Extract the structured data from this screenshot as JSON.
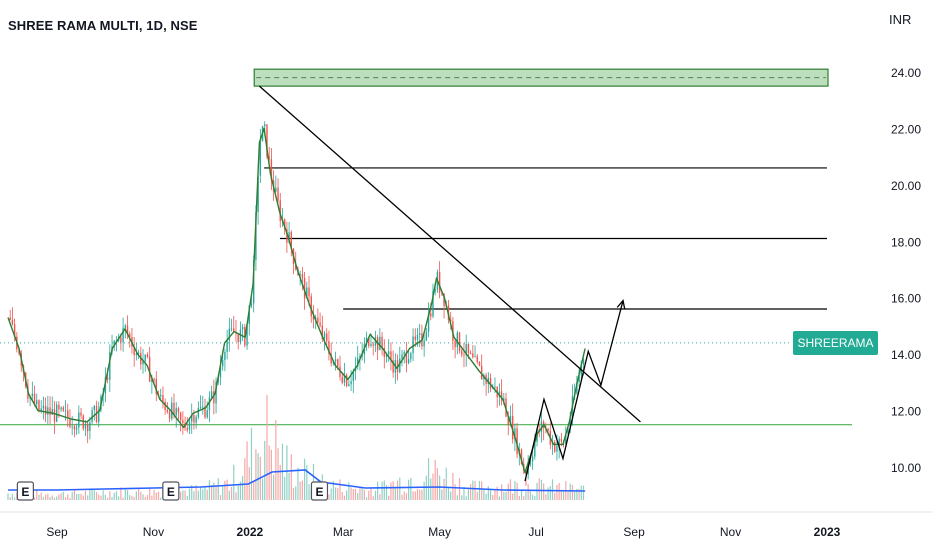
{
  "header": {
    "title": "SHREE RAMA MULTI, 1D, NSE",
    "currency": "INR"
  },
  "price_badge": {
    "label": "SHREERAMA",
    "color": "#22ab94"
  },
  "earnings_label": "E",
  "colors": {
    "up": "#26a69a",
    "down": "#ef5350",
    "ma": "#2962ff",
    "zone_fill": "#a5d6a7",
    "zone_border": "#2e7d32",
    "support": "#4caf50",
    "drawing": "#000000"
  },
  "chart_data": {
    "type": "candlestick",
    "title": "SHREE RAMA MULTI, 1D, NSE",
    "ylabel": "INR",
    "ylim": [
      9.0,
      24.8
    ],
    "y_ticks": [
      "24.00",
      "22.00",
      "20.00",
      "18.00",
      "16.00",
      "14.00",
      "12.00",
      "10.00"
    ],
    "x_ticks": [
      "Sep",
      "Nov",
      "2022",
      "Mar",
      "May",
      "Jul",
      "Sep",
      "Nov",
      "2023"
    ],
    "x_tick_dates": [
      "2021-09-01",
      "2021-11-01",
      "2022-01-01",
      "2022-03-01",
      "2022-05-01",
      "2022-07-01",
      "2022-09-01",
      "2022-11-01",
      "2023-01-01"
    ],
    "price_path": [
      [
        "2021-08-01",
        15.3
      ],
      [
        "2021-08-08",
        14.2
      ],
      [
        "2021-08-14",
        12.6
      ],
      [
        "2021-08-20",
        12.0
      ],
      [
        "2021-08-30",
        11.9
      ],
      [
        "2021-09-10",
        11.7
      ],
      [
        "2021-09-20",
        11.6
      ],
      [
        "2021-09-28",
        12.0
      ],
      [
        "2021-10-06",
        14.2
      ],
      [
        "2021-10-14",
        14.9
      ],
      [
        "2021-10-22",
        14.0
      ],
      [
        "2021-10-28",
        13.6
      ],
      [
        "2021-11-05",
        12.4
      ],
      [
        "2021-11-12",
        12.0
      ],
      [
        "2021-11-20",
        11.4
      ],
      [
        "2021-11-26",
        11.9
      ],
      [
        "2021-12-04",
        12.1
      ],
      [
        "2021-12-10",
        12.6
      ],
      [
        "2021-12-16",
        14.4
      ],
      [
        "2021-12-22",
        14.8
      ],
      [
        "2021-12-29",
        14.6
      ],
      [
        "2022-01-03",
        16.5
      ],
      [
        "2022-01-07",
        21.5
      ],
      [
        "2022-01-10",
        22.0
      ],
      [
        "2022-01-14",
        20.4
      ],
      [
        "2022-01-20",
        19.0
      ],
      [
        "2022-01-25",
        18.2
      ],
      [
        "2022-01-31",
        17.0
      ],
      [
        "2022-02-08",
        15.7
      ],
      [
        "2022-02-16",
        14.6
      ],
      [
        "2022-02-24",
        13.6
      ],
      [
        "2022-03-04",
        13.1
      ],
      [
        "2022-03-10",
        13.6
      ],
      [
        "2022-03-18",
        14.7
      ],
      [
        "2022-03-26",
        14.2
      ],
      [
        "2022-04-04",
        13.5
      ],
      [
        "2022-04-12",
        14.2
      ],
      [
        "2022-04-20",
        14.5
      ],
      [
        "2022-04-26",
        15.8
      ],
      [
        "2022-04-29",
        16.7
      ],
      [
        "2022-05-04",
        16.0
      ],
      [
        "2022-05-10",
        14.6
      ],
      [
        "2022-05-18",
        14.0
      ],
      [
        "2022-05-26",
        13.4
      ],
      [
        "2022-06-04",
        12.8
      ],
      [
        "2022-06-10",
        12.4
      ],
      [
        "2022-06-18",
        11.0
      ],
      [
        "2022-06-24",
        9.8
      ],
      [
        "2022-07-02",
        11.2
      ],
      [
        "2022-07-06",
        11.5
      ],
      [
        "2022-07-12",
        10.8
      ],
      [
        "2022-07-18",
        10.8
      ],
      [
        "2022-07-22",
        11.6
      ],
      [
        "2022-07-27",
        13.0
      ],
      [
        "2022-08-01",
        14.2
      ]
    ],
    "volume": [
      [
        "2021-08-01",
        0.07
      ],
      [
        "2021-09-01",
        0.06
      ],
      [
        "2021-10-01",
        0.08
      ],
      [
        "2021-11-01",
        0.09
      ],
      [
        "2021-12-01",
        0.1
      ],
      [
        "2021-12-20",
        0.18
      ],
      [
        "2022-01-05",
        0.55
      ],
      [
        "2022-01-12",
        0.7
      ],
      [
        "2022-01-25",
        0.35
      ],
      [
        "2022-02-20",
        0.15
      ],
      [
        "2022-03-20",
        0.1
      ],
      [
        "2022-04-28",
        0.3
      ],
      [
        "2022-05-20",
        0.12
      ],
      [
        "2022-06-20",
        0.15
      ],
      [
        "2022-07-20",
        0.12
      ],
      [
        "2022-08-01",
        0.1
      ]
    ],
    "volume_ma": [
      [
        "2021-08-01",
        0.1
      ],
      [
        "2021-09-01",
        0.1
      ],
      [
        "2021-10-01",
        0.11
      ],
      [
        "2021-11-01",
        0.12
      ],
      [
        "2021-12-01",
        0.13
      ],
      [
        "2021-12-31",
        0.16
      ],
      [
        "2022-01-15",
        0.28
      ],
      [
        "2022-02-05",
        0.3
      ],
      [
        "2022-02-15",
        0.18
      ],
      [
        "2022-03-15",
        0.12
      ],
      [
        "2022-05-01",
        0.13
      ],
      [
        "2022-06-10",
        0.1
      ],
      [
        "2022-08-01",
        0.09
      ]
    ],
    "earnings_dates": [
      "2021-08-12",
      "2021-11-12",
      "2022-02-14"
    ],
    "resistance_zone": [
      23.5,
      24.1
    ],
    "resistance_zone_start": "2022-01-05",
    "horizontal_levels": [
      {
        "price": 20.6,
        "from": "2022-01-10",
        "to": "2022-12-31"
      },
      {
        "price": 18.1,
        "from": "2022-01-20",
        "to": "2022-12-31"
      },
      {
        "price": 15.6,
        "from": "2022-03-01",
        "to": "2022-12-31"
      }
    ],
    "support_line": {
      "price": 11.5,
      "from": "2021-08-01",
      "to": "2023-01-10"
    },
    "trendline": [
      [
        "2022-01-07",
        23.5
      ],
      [
        "2022-09-05",
        11.6
      ]
    ],
    "zigzag": [
      [
        "2022-06-24",
        9.5
      ],
      [
        "2022-07-06",
        12.4
      ],
      [
        "2022-07-18",
        10.3
      ],
      [
        "2022-08-03",
        14.1
      ],
      [
        "2022-08-11",
        12.9
      ],
      [
        "2022-08-25",
        15.9
      ]
    ],
    "last_price": 14.4
  }
}
